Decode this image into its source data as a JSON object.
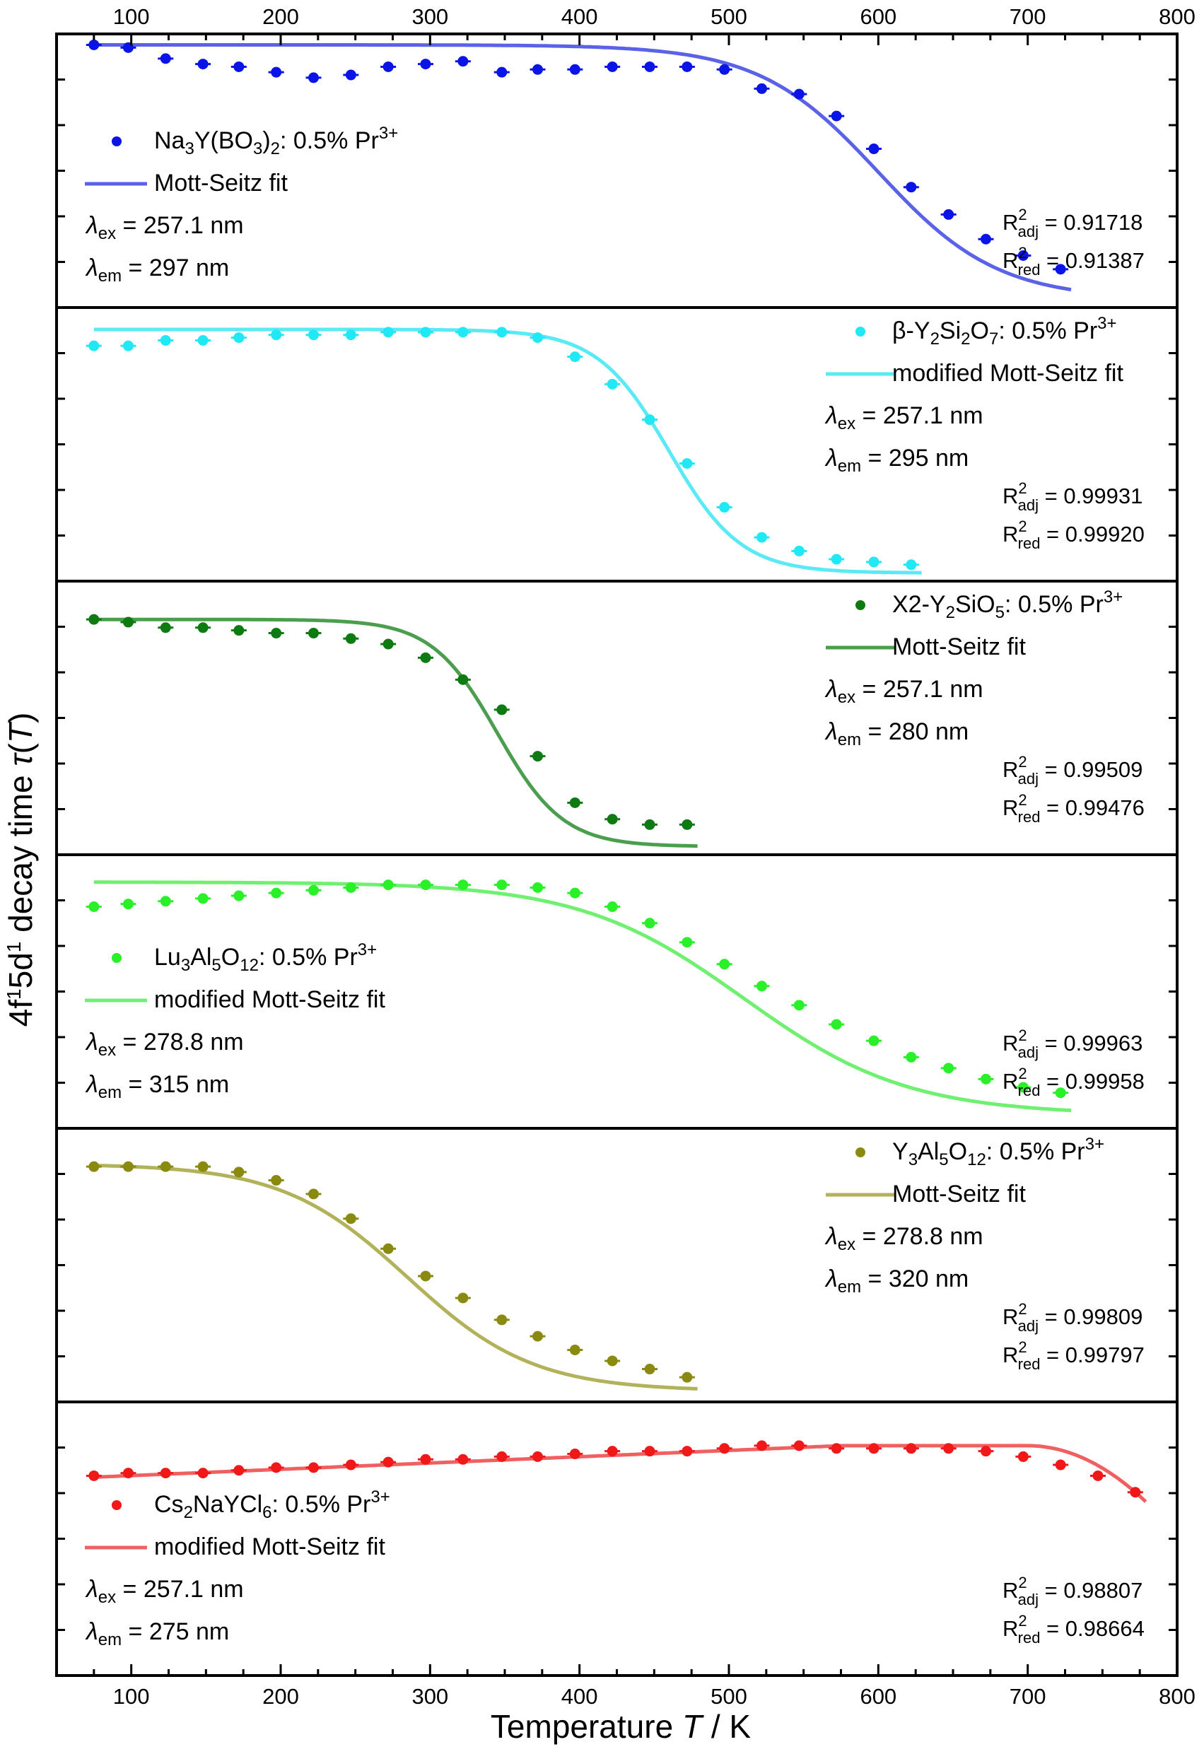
{
  "chart_data": {
    "type": "scatter",
    "x_axis": {
      "label": "Temperature",
      "symbol": "T",
      "unit": " / K",
      "xlim": [
        50,
        800
      ],
      "ticks": [
        100,
        200,
        300,
        400,
        500,
        600,
        700,
        800
      ],
      "tick_labels": [
        "100",
        "200",
        "300",
        "400",
        "500",
        "600",
        "700",
        "800"
      ]
    },
    "y_axis": {
      "label_prefix": "4f",
      "sup1": "1",
      "mid": "5d",
      "sup2": "1",
      "label_rest": " decay time ",
      "symbol": "τ",
      "paren_open": "(",
      "paren_var": "T",
      "paren_close": ")",
      "tick_labels_visible": false
    },
    "panels": [
      {
        "id": "na3y",
        "color": "#0a14e6",
        "line_color": "#5a62e8",
        "legend_position": "left",
        "compound": [
          {
            "t": "Na"
          },
          {
            "t": "3",
            "sub": true
          },
          {
            "t": "Y(BO"
          },
          {
            "t": "3",
            "sub": true
          },
          {
            "t": ")"
          },
          {
            "t": "2",
            "sub": true
          },
          {
            "t": ": 0.5% Pr"
          },
          {
            "t": "3+",
            "sup": true
          }
        ],
        "fit_label": "Mott-Seitz fit",
        "lambda_ex": "257.1 nm",
        "lambda_em": "297 nm",
        "r2_adj": "0.91718",
        "r2_red": "0.91387",
        "x": [
          75,
          98,
          123,
          148,
          172,
          197,
          222,
          247,
          272,
          297,
          322,
          348,
          372,
          397,
          422,
          447,
          472,
          497,
          522,
          547,
          572,
          597,
          622,
          647,
          672,
          697,
          722
        ],
        "y": [
          0.96,
          0.95,
          0.91,
          0.89,
          0.88,
          0.86,
          0.84,
          0.85,
          0.88,
          0.89,
          0.9,
          0.86,
          0.87,
          0.87,
          0.88,
          0.88,
          0.88,
          0.87,
          0.8,
          0.78,
          0.7,
          0.58,
          0.44,
          0.34,
          0.25,
          0.19,
          0.14
        ],
        "fit": {
          "top": 0.96,
          "bottom": 0.03,
          "mid": 600,
          "width": 40
        }
      },
      {
        "id": "y2si2o7",
        "color": "#20e8f5",
        "line_color": "#5aeaf5",
        "legend_position": "right",
        "compound": [
          {
            "t": "β-Y"
          },
          {
            "t": "2",
            "sub": true
          },
          {
            "t": "Si"
          },
          {
            "t": "2",
            "sub": true
          },
          {
            "t": "O"
          },
          {
            "t": "7",
            "sub": true
          },
          {
            "t": ": 0.5% Pr"
          },
          {
            "t": "3+",
            "sup": true
          }
        ],
        "fit_label": "modified Mott-Seitz fit",
        "lambda_ex": "257.1 nm",
        "lambda_em": "295 nm",
        "r2_adj": "0.99931",
        "r2_red": "0.99920",
        "x": [
          75,
          98,
          123,
          148,
          172,
          197,
          222,
          247,
          272,
          297,
          322,
          348,
          372,
          397,
          422,
          447,
          472,
          497,
          522,
          547,
          572,
          597,
          622
        ],
        "y": [
          0.86,
          0.86,
          0.88,
          0.88,
          0.89,
          0.9,
          0.9,
          0.9,
          0.91,
          0.91,
          0.91,
          0.91,
          0.89,
          0.82,
          0.72,
          0.59,
          0.43,
          0.27,
          0.16,
          0.11,
          0.08,
          0.07,
          0.06
        ],
        "fit": {
          "top": 0.92,
          "bottom": 0.03,
          "mid": 460,
          "width": 24
        }
      },
      {
        "id": "y2sio5",
        "color": "#0e7a12",
        "line_color": "#4a9e4e",
        "legend_position": "right",
        "compound": [
          {
            "t": "X2-Y"
          },
          {
            "t": "2",
            "sub": true
          },
          {
            "t": "SiO"
          },
          {
            "t": "5",
            "sub": true
          },
          {
            "t": ": 0.5% Pr"
          },
          {
            "t": "3+",
            "sup": true
          }
        ],
        "fit_label": "Mott-Seitz fit",
        "lambda_ex": "257.1 nm",
        "lambda_em": "280 nm",
        "r2_adj": "0.99509",
        "r2_red": "0.99476",
        "x": [
          75,
          98,
          123,
          148,
          172,
          197,
          222,
          247,
          272,
          297,
          322,
          348,
          372,
          397,
          422,
          447,
          472
        ],
        "y": [
          0.86,
          0.85,
          0.83,
          0.83,
          0.82,
          0.81,
          0.81,
          0.79,
          0.77,
          0.72,
          0.64,
          0.53,
          0.36,
          0.19,
          0.13,
          0.11,
          0.11
        ],
        "fit": {
          "top": 0.86,
          "bottom": 0.03,
          "mid": 345,
          "width": 22
        }
      },
      {
        "id": "lu3al5o12",
        "color": "#2af02a",
        "line_color": "#70f070",
        "legend_position": "left",
        "compound": [
          {
            "t": "Lu"
          },
          {
            "t": "3",
            "sub": true
          },
          {
            "t": "Al"
          },
          {
            "t": "5",
            "sub": true
          },
          {
            "t": "O"
          },
          {
            "t": "12",
            "sub": true
          },
          {
            "t": ": 0.5% Pr"
          },
          {
            "t": "3+",
            "sup": true
          }
        ],
        "fit_label": "modified Mott-Seitz fit",
        "lambda_ex": "278.8 nm",
        "lambda_em": "315 nm",
        "r2_adj": "0.99963",
        "r2_red": "0.99958",
        "x": [
          75,
          98,
          123,
          148,
          172,
          197,
          222,
          247,
          272,
          297,
          322,
          348,
          372,
          397,
          422,
          447,
          472,
          497,
          522,
          547,
          572,
          597,
          622,
          647,
          672,
          697,
          722
        ],
        "y": [
          0.81,
          0.82,
          0.83,
          0.84,
          0.85,
          0.86,
          0.87,
          0.88,
          0.89,
          0.89,
          0.89,
          0.89,
          0.88,
          0.86,
          0.81,
          0.75,
          0.68,
          0.6,
          0.52,
          0.45,
          0.38,
          0.32,
          0.26,
          0.22,
          0.18,
          0.15,
          0.13
        ],
        "fit": {
          "top": 0.9,
          "bottom": 0.05,
          "mid": 510,
          "width": 55
        }
      },
      {
        "id": "y3al5o12",
        "color": "#8a8a10",
        "line_color": "#b2b25a",
        "legend_position": "right",
        "compound": [
          {
            "t": "Y"
          },
          {
            "t": "3",
            "sub": true
          },
          {
            "t": "Al"
          },
          {
            "t": "5",
            "sub": true
          },
          {
            "t": "O"
          },
          {
            "t": "12",
            "sub": true
          },
          {
            "t": ": 0.5% Pr"
          },
          {
            "t": "3+",
            "sup": true
          }
        ],
        "fit_label": "Mott-Seitz fit",
        "lambda_ex": "278.8 nm",
        "lambda_em": "320 nm",
        "r2_adj": "0.99809",
        "r2_red": "0.99797",
        "x": [
          75,
          98,
          123,
          148,
          172,
          197,
          222,
          247,
          272,
          297,
          322,
          348,
          372,
          397,
          422,
          447,
          472
        ],
        "y": [
          0.86,
          0.86,
          0.86,
          0.86,
          0.84,
          0.81,
          0.76,
          0.67,
          0.56,
          0.46,
          0.38,
          0.3,
          0.24,
          0.19,
          0.15,
          0.12,
          0.09
        ],
        "fit": {
          "top": 0.87,
          "bottom": 0.04,
          "mid": 285,
          "width": 42
        }
      },
      {
        "id": "cs2naycl6",
        "color": "#f01818",
        "line_color": "#f06060",
        "legend_position": "left",
        "compound": [
          {
            "t": "Cs"
          },
          {
            "t": "2",
            "sub": true
          },
          {
            "t": "NaYCl"
          },
          {
            "t": "6",
            "sub": true
          },
          {
            "t": ": 0.5% Pr"
          },
          {
            "t": "3+",
            "sup": true
          }
        ],
        "fit_label": "modified Mott-Seitz fit",
        "lambda_ex": "257.1 nm",
        "lambda_em": "275 nm",
        "r2_adj": "0.98807",
        "r2_red": "0.98664",
        "x": [
          75,
          98,
          123,
          148,
          172,
          197,
          222,
          247,
          272,
          297,
          322,
          348,
          372,
          397,
          422,
          447,
          472,
          497,
          522,
          547,
          572,
          597,
          622,
          647,
          672,
          697,
          722,
          747,
          772
        ],
        "y": [
          0.73,
          0.74,
          0.74,
          0.74,
          0.75,
          0.76,
          0.76,
          0.77,
          0.78,
          0.79,
          0.79,
          0.8,
          0.8,
          0.81,
          0.82,
          0.82,
          0.82,
          0.83,
          0.84,
          0.84,
          0.83,
          0.83,
          0.83,
          0.83,
          0.82,
          0.8,
          0.77,
          0.73,
          0.67
        ],
        "fit": {
          "top": 0.84,
          "bottom": 0.4,
          "mid": 790,
          "width": 25,
          "slope": 0.00019,
          "base": 0.725
        }
      }
    ]
  }
}
